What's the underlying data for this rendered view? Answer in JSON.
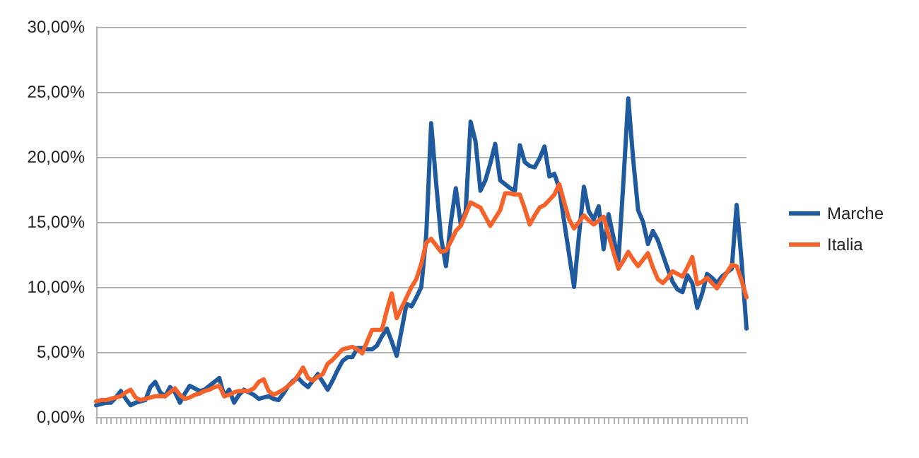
{
  "chart_data": {
    "type": "line",
    "categories": [
      null,
      null,
      null,
      null,
      null,
      null,
      null,
      null,
      null,
      null,
      null,
      null,
      null,
      null,
      null,
      null,
      null,
      null,
      null,
      null,
      null,
      null,
      null,
      null,
      null,
      null,
      null,
      null,
      null,
      null,
      null,
      null,
      null,
      null,
      null,
      null,
      null,
      null,
      null,
      null,
      null,
      null,
      null,
      null,
      null,
      null,
      null,
      null,
      null,
      null,
      null,
      null,
      null,
      null,
      null,
      null,
      null,
      null,
      null,
      null,
      null,
      null,
      null,
      null,
      null,
      null,
      null,
      null,
      null,
      null,
      null,
      null,
      null,
      null,
      null,
      null,
      null,
      null,
      null,
      null,
      null,
      null,
      null,
      null,
      null,
      null,
      null,
      null,
      null,
      null,
      null,
      null,
      null,
      null,
      null,
      null,
      null,
      null,
      null,
      null,
      null,
      null,
      null,
      null,
      null,
      null,
      null,
      null,
      null,
      null,
      null,
      null,
      null,
      null,
      null,
      null,
      null,
      null,
      null,
      null,
      null,
      null,
      null,
      null,
      null,
      null,
      null,
      null,
      null,
      null,
      null,
      null,
      null
    ],
    "series": [
      {
        "name": "Marche",
        "color": "#1f5a9e",
        "values": [
          0.9,
          1.0,
          1.1,
          1.1,
          1.5,
          2.0,
          1.4,
          0.9,
          1.1,
          1.2,
          1.3,
          2.3,
          2.7,
          1.9,
          1.6,
          2.3,
          1.9,
          1.1,
          1.8,
          2.4,
          2.2,
          2.0,
          2.1,
          2.4,
          2.7,
          3.0,
          1.6,
          2.1,
          1.1,
          1.7,
          2.1,
          1.9,
          1.7,
          1.4,
          1.5,
          1.6,
          1.4,
          1.3,
          1.8,
          2.4,
          2.8,
          3.0,
          2.6,
          2.3,
          2.8,
          3.3,
          2.7,
          2.1,
          2.8,
          3.6,
          4.3,
          4.6,
          4.6,
          5.3,
          5.3,
          5.2,
          5.2,
          5.5,
          6.2,
          6.8,
          5.8,
          4.7,
          6.7,
          8.7,
          8.5,
          9.2,
          10.0,
          14.0,
          22.6,
          18.0,
          13.8,
          11.6,
          15.0,
          17.6,
          14.8,
          15.8,
          22.7,
          21.2,
          17.4,
          18.2,
          19.5,
          21.0,
          18.2,
          17.9,
          17.6,
          17.4,
          20.9,
          19.6,
          19.3,
          19.2,
          19.9,
          20.8,
          18.5,
          18.7,
          17.6,
          15.0,
          12.5,
          10.0,
          14.0,
          17.7,
          15.8,
          15.2,
          16.2,
          12.9,
          15.6,
          13.8,
          12.0,
          18.0,
          24.5,
          19.8,
          15.9,
          15.0,
          13.3,
          14.3,
          13.6,
          12.5,
          11.4,
          10.4,
          9.8,
          9.6,
          10.9,
          10.3,
          8.4,
          9.5,
          11.0,
          10.7,
          10.3,
          10.8,
          11.1,
          11.4,
          16.3,
          12.0,
          6.8
        ]
      },
      {
        "name": "Italia",
        "color": "#f5622a",
        "values": [
          1.2,
          1.3,
          1.3,
          1.4,
          1.5,
          1.6,
          1.9,
          2.1,
          1.5,
          1.3,
          1.4,
          1.5,
          1.6,
          1.6,
          1.6,
          1.9,
          2.2,
          1.7,
          1.4,
          1.5,
          1.7,
          1.8,
          2.0,
          2.1,
          2.3,
          2.4,
          1.6,
          1.7,
          1.9,
          2.0,
          2.0,
          2.0,
          2.2,
          2.7,
          2.9,
          2.0,
          1.7,
          1.9,
          2.1,
          2.4,
          2.7,
          3.2,
          3.8,
          3.0,
          2.8,
          3.1,
          3.3,
          4.1,
          4.4,
          4.8,
          5.2,
          5.3,
          5.4,
          5.2,
          4.9,
          5.8,
          6.7,
          6.7,
          6.7,
          8.2,
          9.5,
          7.6,
          8.4,
          9.2,
          10.0,
          10.6,
          11.8,
          13.4,
          13.7,
          13.2,
          12.7,
          12.8,
          13.5,
          14.3,
          14.7,
          15.6,
          16.5,
          16.3,
          16.1,
          15.4,
          14.7,
          15.3,
          15.9,
          17.2,
          17.2,
          17.1,
          17.1,
          16.0,
          14.8,
          15.5,
          16.1,
          16.3,
          16.7,
          17.1,
          17.9,
          16.5,
          15.2,
          14.5,
          15.0,
          15.5,
          15.1,
          14.8,
          15.1,
          15.4,
          14.0,
          12.7,
          11.4,
          12.0,
          12.7,
          12.1,
          11.6,
          12.1,
          12.6,
          11.5,
          10.6,
          10.3,
          10.7,
          11.2,
          11.0,
          10.8,
          11.5,
          12.3,
          10.2,
          10.4,
          10.7,
          10.3,
          9.9,
          10.5,
          11.1,
          11.7,
          11.6,
          10.5,
          9.2
        ]
      }
    ],
    "ylim": [
      0,
      30
    ],
    "yticks": [
      {
        "value": 0,
        "label": "0,00%"
      },
      {
        "value": 5,
        "label": "5,00%"
      },
      {
        "value": 10,
        "label": "10,00%"
      },
      {
        "value": 15,
        "label": "15,00%"
      },
      {
        "value": 20,
        "label": "20,00%"
      },
      {
        "value": 25,
        "label": "25,00%"
      },
      {
        "value": 30,
        "label": "30,00%"
      }
    ],
    "grid": "y",
    "legend": "right",
    "marker": "none",
    "line_style": "solid"
  }
}
